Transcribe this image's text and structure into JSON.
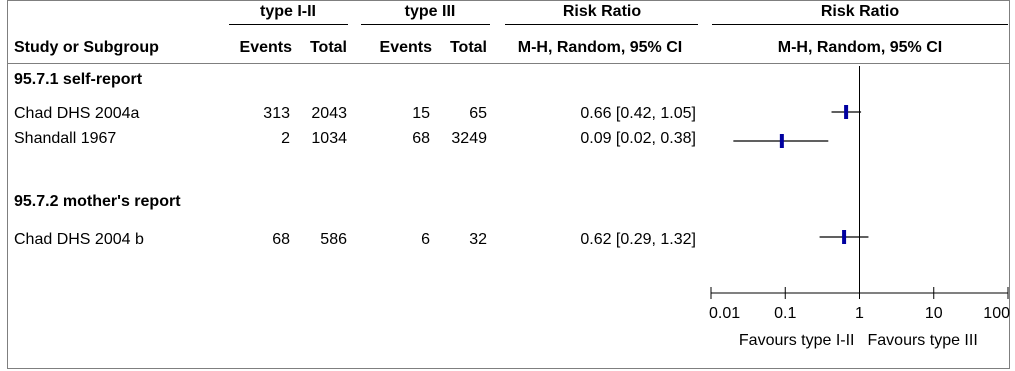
{
  "figure_caption_partial": "",
  "headers": {
    "group1": "type I-II",
    "group2": "type III",
    "risk_ratio_num": "Risk Ratio",
    "risk_ratio_plot": "Risk Ratio",
    "study_col": "Study or Subgroup",
    "events1": "Events",
    "total1": "Total",
    "events2": "Events",
    "total2": "Total",
    "method_num": "M-H, Random, 95% CI",
    "method_plot": "M-H, Random, 95% CI"
  },
  "subgroups": [
    {
      "label": "95.7.1 self-report",
      "studies": [
        {
          "name": "Chad DHS 2004a",
          "events1": "313",
          "total1": "2043",
          "events2": "15",
          "total2": "65",
          "ci_text": "0.66 [0.42, 1.05]"
        },
        {
          "name": "Shandall 1967",
          "events1": "2",
          "total1": "1034",
          "events2": "68",
          "total2": "3249",
          "ci_text": "0.09 [0.02, 0.38]"
        }
      ]
    },
    {
      "label": "95.7.2 mother's report",
      "studies": [
        {
          "name": "Chad DHS 2004 b",
          "events1": "68",
          "total1": "586",
          "events2": "6",
          "total2": "32",
          "ci_text": "0.62 [0.29, 1.32]"
        }
      ]
    }
  ],
  "chart_data": {
    "type": "forest",
    "x_scale": "log",
    "xlim": [
      0.01,
      100
    ],
    "x_ticks": [
      0.01,
      0.1,
      1,
      10,
      100
    ],
    "x_tick_labels": [
      "0.01",
      "0.1",
      "1",
      "10",
      "100"
    ],
    "favours_left": "Favours type I-II",
    "favours_right": "Favours type III",
    "series": [
      {
        "study": "Chad DHS 2004a",
        "rr": 0.66,
        "lower": 0.42,
        "upper": 1.05
      },
      {
        "study": "Shandall 1967",
        "rr": 0.09,
        "lower": 0.02,
        "upper": 0.38
      },
      {
        "study": "Chad DHS 2004 b",
        "rr": 0.62,
        "lower": 0.29,
        "upper": 1.32
      }
    ],
    "marker_color": "#0000a0"
  }
}
